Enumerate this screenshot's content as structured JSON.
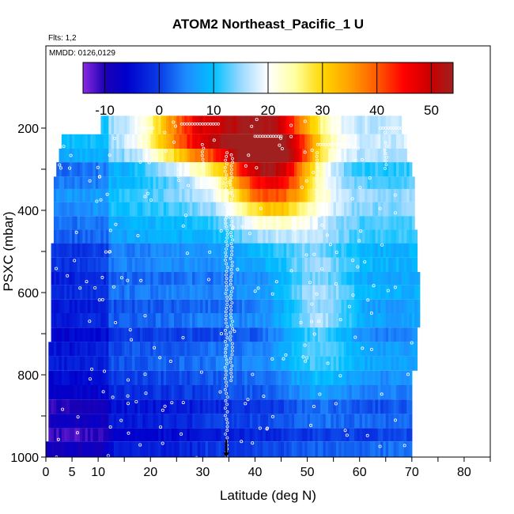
{
  "chart_data": {
    "type": "heatmap",
    "title": "ATOM2 Northeast_Pacific_1 U",
    "notes": [
      "Flts: 1,2",
      "MMDD: 0126,0129"
    ],
    "xlabel": "Latitude (deg N)",
    "ylabel": "PSXC (mbar)",
    "xlim": [
      0,
      85
    ],
    "ylim": [
      1000,
      0
    ],
    "x_ticks": [
      0,
      5,
      10,
      20,
      30,
      40,
      50,
      60,
      70,
      80
    ],
    "y_ticks": [
      200,
      400,
      600,
      800,
      1000
    ],
    "colorbar": {
      "range": [
        -14,
        54
      ],
      "ticks": [
        -10,
        0,
        10,
        20,
        30,
        40,
        50
      ],
      "stops": [
        {
          "v": -14,
          "c": "#8a2be2"
        },
        {
          "v": -10,
          "c": "#1c00b4"
        },
        {
          "v": -6,
          "c": "#0000cd"
        },
        {
          "v": 0,
          "c": "#0a3ce6"
        },
        {
          "v": 5,
          "c": "#1e8cff"
        },
        {
          "v": 10,
          "c": "#00c0ff"
        },
        {
          "v": 15,
          "c": "#9ad8ff"
        },
        {
          "v": 20,
          "c": "#ffffff"
        },
        {
          "v": 25,
          "c": "#ffffa0"
        },
        {
          "v": 30,
          "c": "#ffd700"
        },
        {
          "v": 35,
          "c": "#ffa000"
        },
        {
          "v": 40,
          "c": "#ff5a00"
        },
        {
          "v": 45,
          "c": "#ff0000"
        },
        {
          "v": 50,
          "c": "#c80000"
        },
        {
          "v": 54,
          "c": "#a02020"
        }
      ]
    },
    "marker": {
      "x": 34.5,
      "y": 1000
    }
  }
}
